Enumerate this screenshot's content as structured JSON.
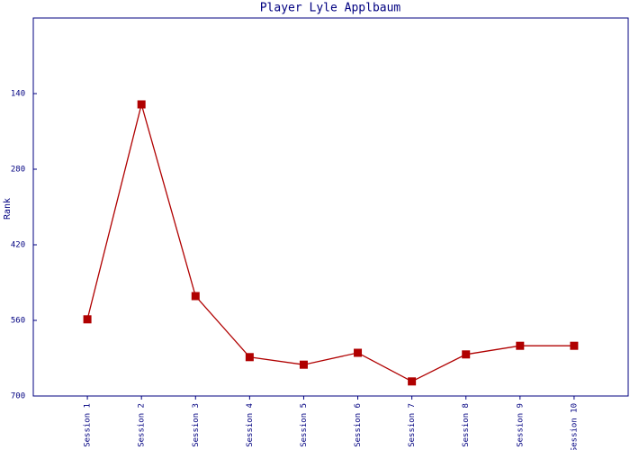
{
  "chart_data": {
    "type": "line",
    "title": "Player Lyle Applbaum",
    "y_label": "Rank",
    "categories": [
      "Session 1",
      "Session 2",
      "Session 3",
      "Session 4",
      "Session 5",
      "Session 6",
      "Session 7",
      "Session 8",
      "Session 9",
      "Session 10"
    ],
    "series": [
      {
        "name": "Rank",
        "color": "#b00000",
        "values": [
          558,
          160,
          515,
          628,
          642,
          620,
          673,
          623,
          607,
          607
        ]
      }
    ],
    "ylim": [
      700,
      0
    ],
    "yticks": [
      140,
      280,
      420,
      560,
      700
    ],
    "grid": false
  }
}
